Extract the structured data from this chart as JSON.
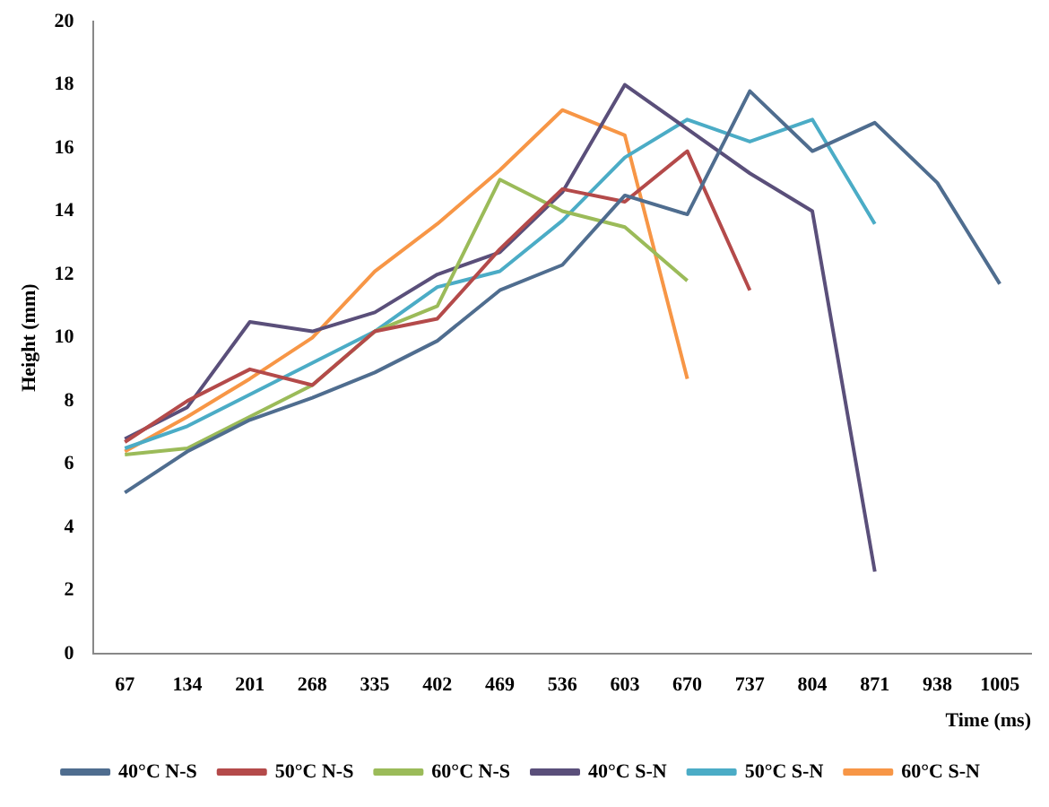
{
  "chart_data": {
    "type": "line",
    "xlabel": "Time (ms)",
    "ylabel": "Height (mm)",
    "categories": [
      "67",
      "134",
      "201",
      "268",
      "335",
      "402",
      "469",
      "536",
      "603",
      "670",
      "737",
      "804",
      "871",
      "938",
      "1005"
    ],
    "ylim": [
      0,
      20
    ],
    "yticks": [
      0,
      2,
      4,
      6,
      8,
      10,
      12,
      14,
      16,
      18,
      20
    ],
    "grid": false,
    "legend": "bottom",
    "marker": "none",
    "line_style": "solid",
    "series": [
      {
        "name": "40°C N-S",
        "color": "#4f6d8f",
        "values": [
          5.1,
          6.4,
          7.4,
          8.1,
          8.9,
          9.9,
          11.5,
          12.3,
          14.5,
          13.9,
          17.8,
          15.9,
          16.8,
          14.9,
          11.7
        ]
      },
      {
        "name": "50°C N-S",
        "color": "#b44a4a",
        "values": [
          6.7,
          8.0,
          9.0,
          8.5,
          10.2,
          10.6,
          12.8,
          14.7,
          14.3,
          15.9,
          11.5,
          null,
          null,
          null,
          null
        ]
      },
      {
        "name": "60°C N-S",
        "color": "#9bbb59",
        "values": [
          6.3,
          6.5,
          7.5,
          8.5,
          10.2,
          11.0,
          15.0,
          14.0,
          13.5,
          11.8,
          null,
          null,
          null,
          null,
          null
        ]
      },
      {
        "name": "40°C S-N",
        "color": "#5a4f7a",
        "values": [
          6.8,
          7.8,
          10.5,
          10.2,
          10.8,
          12.0,
          12.7,
          14.6,
          18.0,
          16.6,
          15.2,
          14.0,
          2.6,
          null,
          null
        ]
      },
      {
        "name": "50°C S-N",
        "color": "#4bacc6",
        "values": [
          6.5,
          7.2,
          8.2,
          9.2,
          10.2,
          11.6,
          12.1,
          13.7,
          15.7,
          16.9,
          16.2,
          16.9,
          13.6,
          null,
          null
        ]
      },
      {
        "name": "60°C S-N",
        "color": "#f79646",
        "values": [
          6.4,
          7.5,
          8.7,
          10.0,
          12.1,
          13.6,
          15.3,
          17.2,
          16.4,
          8.7,
          null,
          null,
          null,
          null,
          null
        ]
      }
    ]
  }
}
